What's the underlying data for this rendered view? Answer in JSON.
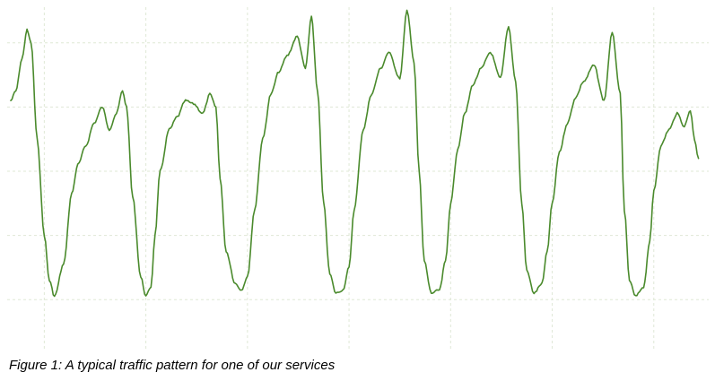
{
  "caption": "Figure 1: A typical traffic pattern for one of our services",
  "chart_data": {
    "type": "line",
    "title": "",
    "xlabel": "",
    "ylabel": "",
    "grid": true,
    "grid_style": "dashed",
    "xlim": [
      0,
      6.8
    ],
    "ylim": [
      0,
      1.0
    ],
    "x_gridlines": [
      0.33,
      1.33,
      2.33,
      3.33,
      4.33,
      5.33,
      6.33
    ],
    "y_gridlines": [
      0.1,
      0.3,
      0.5,
      0.7,
      0.9
    ],
    "colors": {
      "line": "#4a8a2c",
      "grid": "#dfe8d6"
    },
    "series": [
      {
        "x": [
          0.0,
          0.05,
          0.11,
          0.16,
          0.2,
          0.26,
          0.33,
          0.38,
          0.43,
          0.52,
          0.6,
          0.66,
          0.74,
          0.82,
          0.9,
          0.97,
          1.04,
          1.1,
          1.14,
          1.2,
          1.28,
          1.33,
          1.38,
          1.42,
          1.47,
          1.56,
          1.64,
          1.72,
          1.8,
          1.89,
          1.96,
          2.02,
          2.06,
          2.12,
          2.21,
          2.27,
          2.33,
          2.4,
          2.48,
          2.56,
          2.64,
          2.72,
          2.82,
          2.9,
          2.96,
          3.02,
          3.08,
          3.14,
          3.2,
          3.27,
          3.33,
          3.38,
          3.47,
          3.55,
          3.64,
          3.72,
          3.83,
          3.9,
          3.97,
          4.02,
          4.07,
          4.14,
          4.22,
          4.28,
          4.33,
          4.4,
          4.47,
          4.55,
          4.63,
          4.72,
          4.82,
          4.9,
          4.97,
          5.03,
          5.08,
          5.15,
          5.23,
          5.28,
          5.33,
          5.4,
          5.48,
          5.56,
          5.64,
          5.74,
          5.84,
          5.92,
          6.0,
          6.04,
          6.09,
          6.15,
          6.23,
          6.29,
          6.33,
          6.4,
          6.48,
          6.56,
          6.63,
          6.69,
          6.73,
          6.77
        ],
        "y": [
          0.72,
          0.75,
          0.85,
          0.94,
          0.9,
          0.6,
          0.3,
          0.16,
          0.11,
          0.21,
          0.43,
          0.52,
          0.58,
          0.65,
          0.7,
          0.63,
          0.68,
          0.75,
          0.7,
          0.42,
          0.17,
          0.11,
          0.14,
          0.3,
          0.5,
          0.63,
          0.67,
          0.72,
          0.71,
          0.68,
          0.74,
          0.7,
          0.48,
          0.25,
          0.15,
          0.13,
          0.17,
          0.38,
          0.6,
          0.74,
          0.81,
          0.86,
          0.92,
          0.82,
          0.98,
          0.75,
          0.4,
          0.18,
          0.12,
          0.13,
          0.2,
          0.38,
          0.63,
          0.74,
          0.82,
          0.87,
          0.79,
          1.0,
          0.84,
          0.5,
          0.22,
          0.12,
          0.13,
          0.22,
          0.4,
          0.57,
          0.68,
          0.77,
          0.82,
          0.87,
          0.79,
          0.95,
          0.78,
          0.4,
          0.19,
          0.12,
          0.15,
          0.25,
          0.4,
          0.56,
          0.65,
          0.73,
          0.78,
          0.83,
          0.72,
          0.93,
          0.74,
          0.38,
          0.16,
          0.11,
          0.14,
          0.28,
          0.44,
          0.58,
          0.63,
          0.68,
          0.64,
          0.69,
          0.6,
          0.54
        ]
      }
    ]
  }
}
